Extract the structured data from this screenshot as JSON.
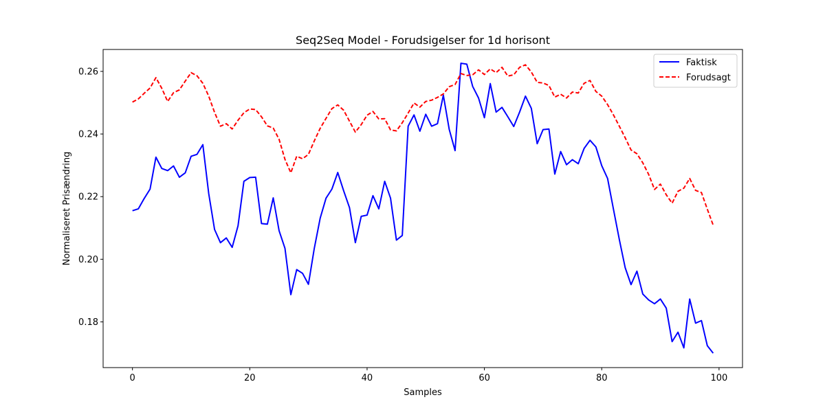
{
  "chart_data": {
    "type": "line",
    "title": "Seq2Seq Model - Forudsigelser for 1d horisont",
    "xlabel": "Samples",
    "ylabel": "Normaliseret Prisændring",
    "xlim": [
      -5.0,
      104.0
    ],
    "ylim": [
      0.1654,
      0.267
    ],
    "xticks": [
      0,
      20,
      40,
      60,
      80,
      100
    ],
    "xtick_labels": [
      "0",
      "20",
      "40",
      "60",
      "80",
      "100"
    ],
    "yticks": [
      0.18,
      0.2,
      0.22,
      0.24,
      0.26
    ],
    "ytick_labels": [
      "0.18",
      "0.20",
      "0.22",
      "0.24",
      "0.26"
    ],
    "grid": false,
    "legend_position": "top-right",
    "series": [
      {
        "name": "Faktisk",
        "color": "#0000ff",
        "style": "solid",
        "values": [
          0.2155,
          0.2161,
          0.2194,
          0.2224,
          0.2326,
          0.229,
          0.2283,
          0.2298,
          0.2262,
          0.2276,
          0.2329,
          0.2335,
          0.2366,
          0.221,
          0.2095,
          0.2053,
          0.2068,
          0.2038,
          0.2107,
          0.2249,
          0.2261,
          0.2262,
          0.2114,
          0.2112,
          0.2196,
          0.2091,
          0.2035,
          0.1887,
          0.1967,
          0.1955,
          0.192,
          0.2035,
          0.2131,
          0.2195,
          0.2224,
          0.2277,
          0.2219,
          0.2165,
          0.2053,
          0.2137,
          0.2141,
          0.2203,
          0.2161,
          0.2249,
          0.2195,
          0.2061,
          0.2076,
          0.2425,
          0.2461,
          0.2409,
          0.2463,
          0.2425,
          0.2433,
          0.2524,
          0.2415,
          0.2347,
          0.2626,
          0.2623,
          0.2552,
          0.2515,
          0.2452,
          0.2561,
          0.247,
          0.2485,
          0.2455,
          0.2424,
          0.247,
          0.2521,
          0.2482,
          0.2369,
          0.2414,
          0.2416,
          0.2272,
          0.2344,
          0.2302,
          0.2318,
          0.2305,
          0.2354,
          0.238,
          0.2359,
          0.2299,
          0.2258,
          0.216,
          0.2063,
          0.1973,
          0.1919,
          0.1962,
          0.1889,
          0.187,
          0.1858,
          0.1873,
          0.1844,
          0.1737,
          0.1767,
          0.1717,
          0.1873,
          0.1796,
          0.1804,
          0.1724,
          0.17
        ]
      },
      {
        "name": "Forudsagt",
        "color": "#ff0000",
        "style": "dashed",
        "values": [
          0.2502,
          0.2512,
          0.253,
          0.2547,
          0.258,
          0.2546,
          0.2504,
          0.2532,
          0.2541,
          0.2569,
          0.2596,
          0.2586,
          0.2562,
          0.2521,
          0.2469,
          0.2425,
          0.2433,
          0.2416,
          0.2444,
          0.2468,
          0.248,
          0.2478,
          0.2455,
          0.2426,
          0.2419,
          0.2383,
          0.2319,
          0.2276,
          0.2329,
          0.2321,
          0.2335,
          0.2378,
          0.2418,
          0.245,
          0.2481,
          0.2493,
          0.2476,
          0.2441,
          0.2406,
          0.243,
          0.246,
          0.2472,
          0.2448,
          0.2449,
          0.2413,
          0.241,
          0.2436,
          0.2467,
          0.2499,
          0.2486,
          0.2504,
          0.2508,
          0.2517,
          0.2528,
          0.2551,
          0.2558,
          0.2593,
          0.2587,
          0.2589,
          0.2605,
          0.259,
          0.2608,
          0.2596,
          0.2613,
          0.2585,
          0.2589,
          0.2613,
          0.2621,
          0.2598,
          0.2565,
          0.2563,
          0.2555,
          0.2518,
          0.2527,
          0.2515,
          0.2534,
          0.2531,
          0.2562,
          0.2571,
          0.2536,
          0.2521,
          0.2494,
          0.2461,
          0.2425,
          0.2388,
          0.2349,
          0.2337,
          0.2308,
          0.2271,
          0.2223,
          0.224,
          0.2206,
          0.2179,
          0.2217,
          0.2227,
          0.2258,
          0.222,
          0.2213,
          0.216,
          0.2109
        ]
      }
    ]
  }
}
